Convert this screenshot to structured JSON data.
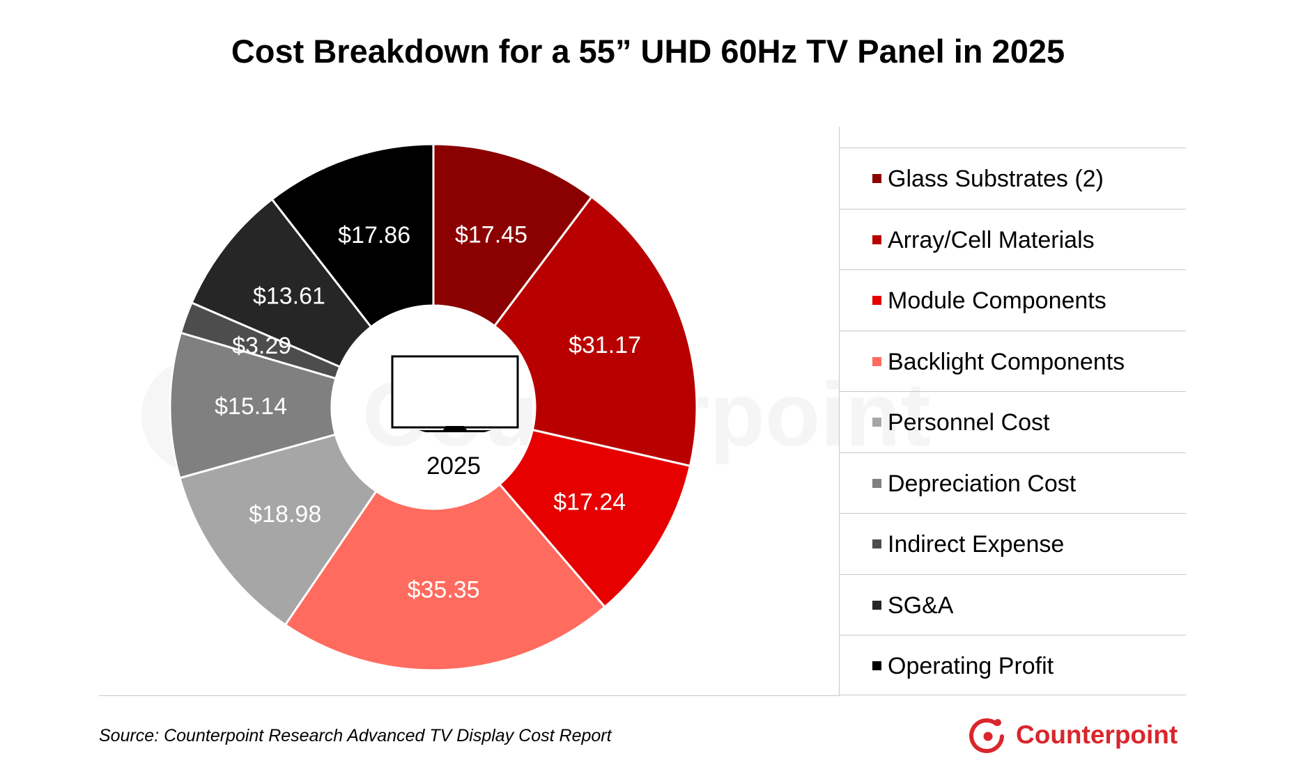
{
  "chart_data": {
    "type": "pie",
    "title": "Cost Breakdown for a 55” UHD 60Hz TV Panel in 2025",
    "center_label": "2025",
    "categories": [
      "Glass Substrates (2)",
      "Array/Cell Materials",
      "Module Components",
      "Backlight Components",
      "Personnel Cost",
      "Depreciation Cost",
      "Indirect Expense",
      "SG&A",
      "Operating Profit"
    ],
    "values": [
      17.45,
      31.17,
      17.24,
      35.35,
      18.98,
      15.14,
      3.29,
      13.61,
      17.86
    ],
    "data_labels": [
      "$17.45",
      "$31.17",
      "$17.24",
      "$35.35",
      "$18.98",
      "$15.14",
      "$3.29",
      "$13.61",
      "$17.86"
    ],
    "colors": [
      "#8b0000",
      "#b80000",
      "#e60000",
      "#ff6b5e",
      "#a6a6a6",
      "#808080",
      "#4d4d4d",
      "#262626",
      "#000000"
    ],
    "legend_position": "right",
    "donut": true
  },
  "legend": {
    "items": [
      {
        "label": "Glass Substrates (2)",
        "color": "#8b0000"
      },
      {
        "label": "Array/Cell Materials",
        "color": "#b80000"
      },
      {
        "label": "Module Components",
        "color": "#e60000"
      },
      {
        "label": "Backlight Components",
        "color": "#ff6b5e"
      },
      {
        "label": "Personnel Cost",
        "color": "#a6a6a6"
      },
      {
        "label": "Depreciation Cost",
        "color": "#808080"
      },
      {
        "label": "Indirect Expense",
        "color": "#4d4d4d"
      },
      {
        "label": "SG&A",
        "color": "#262626"
      },
      {
        "label": "Operating Profit",
        "color": "#000000"
      }
    ]
  },
  "footer": {
    "source": "Source: Counterpoint Research Advanced TV Display Cost Report",
    "logo_text": "Counterpoint"
  },
  "icons": {
    "center": "tv-icon",
    "logo": "counterpoint-logo-icon"
  },
  "watermark": "Counterpoint"
}
